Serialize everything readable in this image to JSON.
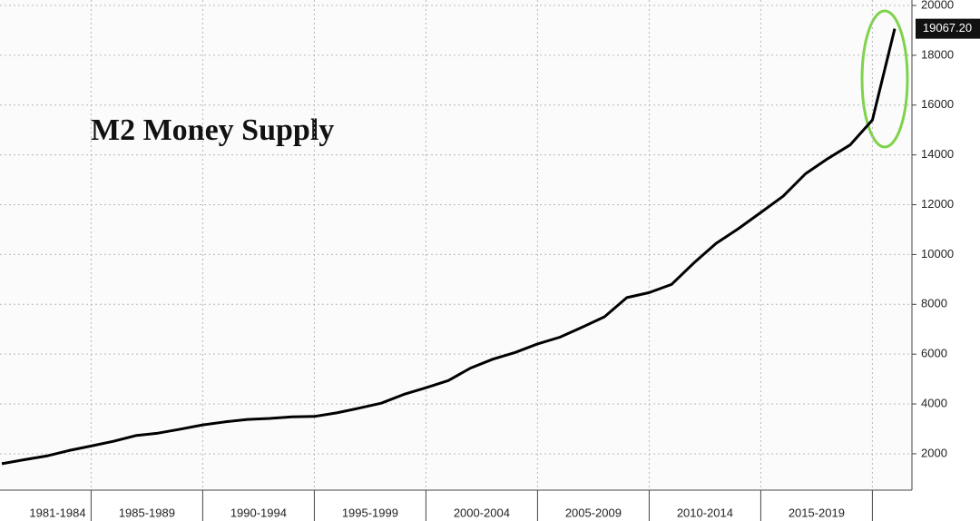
{
  "chart_data": {
    "type": "line",
    "title": "M2 Money Supply",
    "categories": [
      null,
      null,
      "1981-1984",
      null,
      null,
      null,
      "1985-1989",
      null,
      null,
      null,
      null,
      "1990-1994",
      null,
      null,
      null,
      null,
      "1995-1999",
      null,
      null,
      null,
      null,
      "2000-2004",
      null,
      null,
      null,
      null,
      "2005-2009",
      null,
      null,
      null,
      null,
      "2010-2014",
      null,
      null,
      null,
      null,
      "2015-2019",
      null,
      null,
      null,
      null
    ],
    "series": [
      {
        "color": "#000000",
        "values": [
          1600,
          1760,
          1910,
          2130,
          2310,
          2500,
          2730,
          2830,
          2990,
          3160,
          3280,
          3380,
          3420,
          3480,
          3500,
          3640,
          3830,
          4030,
          4380,
          4650,
          4940,
          5440,
          5800,
          6070,
          6410,
          6680,
          7080,
          7500,
          8270,
          8470,
          8800,
          9660,
          10450,
          11040,
          11690,
          12340,
          13240,
          13850,
          14400,
          15400,
          19067.2
        ],
        "value_labels": [
          null,
          null,
          null,
          null,
          null,
          null,
          null,
          null,
          null,
          null,
          null,
          null,
          null,
          null,
          null,
          null,
          null,
          null,
          null,
          null,
          null,
          null,
          null,
          null,
          null,
          null,
          null,
          null,
          null,
          null,
          null,
          null,
          null,
          null,
          null,
          null,
          null,
          null,
          null,
          null,
          "19067.20"
        ]
      }
    ],
    "ylim": [
      540,
      20220
    ],
    "yticks": [
      2000,
      4000,
      6000,
      8000,
      10000,
      12000,
      14000,
      16000,
      18000,
      20000
    ],
    "grid": true
  }
}
